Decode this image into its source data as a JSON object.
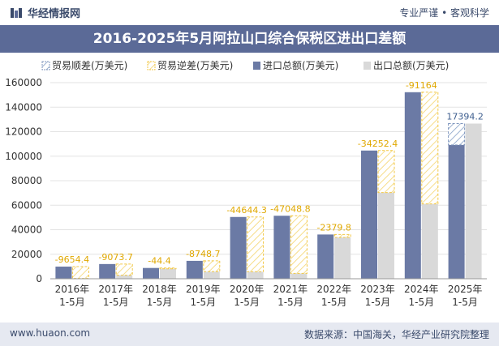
{
  "header": {
    "brand": "华经情报网",
    "tagline": "专业严谨 • 客观科学",
    "title": "2016-2025年5月阿拉山口综合保税区进出口差额"
  },
  "footer": {
    "url": "www.huaon.com",
    "source": "数据来源：中国海关，华经产业研究院整理"
  },
  "colors": {
    "import": "#6b7aa5",
    "export": "#d9d9d9",
    "surplus": "#9ab0d0",
    "deficit": "#f2c744",
    "title_bg": "#5b6a97"
  },
  "chart_data": {
    "type": "bar",
    "title": "2016-2025年5月阿拉山口综合保税区进出口差额",
    "categories": [
      [
        "2016年",
        "1-5月"
      ],
      [
        "2017年",
        "1-5月"
      ],
      [
        "2018年",
        "1-5月"
      ],
      [
        "2019年",
        "1-5月"
      ],
      [
        "2020年",
        "1-5月"
      ],
      [
        "2021年",
        "1-5月"
      ],
      [
        "2022年",
        "1-5月"
      ],
      [
        "2023年",
        "1-5月"
      ],
      [
        "2024年",
        "1-5月"
      ],
      [
        "2025年",
        "1-5月"
      ]
    ],
    "legend": [
      "贸易顺差(万美元)",
      "贸易逆差(万美元)",
      "进口总额(万美元)",
      "出口总额(万美元)"
    ],
    "series": [
      {
        "name": "进口总额(万美元)",
        "values": [
          9900,
          12000,
          8800,
          14600,
          50400,
          51400,
          36100,
          104600,
          152200,
          109200
        ]
      },
      {
        "name": "出口总额(万美元)",
        "values": [
          245.6,
          2926.3,
          8755.6,
          5851.3,
          5755.7,
          4351.2,
          33720.2,
          70347.6,
          61036,
          126594.2
        ]
      }
    ],
    "balance": [
      -9654.4,
      -9073.7,
      -44.4,
      -8748.7,
      -44644.3,
      -47048.8,
      -2379.8,
      -34252.4,
      -91164,
      17394.2
    ],
    "balance_labels": [
      "-9654.4",
      "-9073.7",
      "-44.4",
      "-8748.7",
      "-44644.3",
      "-47048.8",
      "-2379.8",
      "-34252.4",
      "-91164",
      "17394.2"
    ],
    "yticks": [
      "0",
      "20000",
      "40000",
      "60000",
      "80000",
      "100000",
      "120000",
      "140000",
      "160000"
    ],
    "ylim": [
      0,
      160000
    ],
    "xlabel": "",
    "ylabel": ""
  }
}
